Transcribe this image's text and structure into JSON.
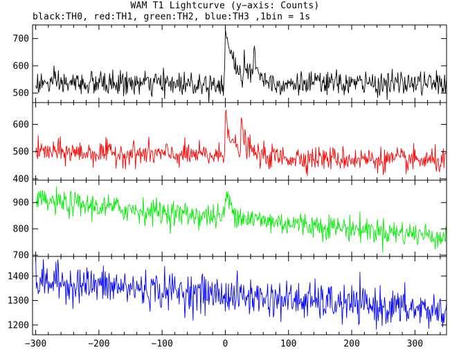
{
  "title": "WAM T1 Lightcurve (y−axis: Counts)",
  "subtitle": "black:TH0, red:TH1, green:TH2, blue:TH3 ,1bin = 1s",
  "chart_data": {
    "type": "line",
    "xlim": [
      -305,
      350
    ],
    "x_ticks": [
      -300,
      -200,
      -100,
      0,
      100,
      200,
      300
    ],
    "x_tick_labels": [
      "−300",
      "−200",
      "−100",
      "0",
      "100",
      "200",
      "300"
    ],
    "grid": false,
    "panels": [
      {
        "series": "TH0",
        "color": "#000000",
        "ylim": [
          465,
          750
        ],
        "y_ticks": [
          500,
          600,
          700
        ],
        "baseline": 535,
        "noise": 22,
        "features": [
          {
            "x": 0,
            "peak": 735,
            "decay": 14
          },
          {
            "x": 30,
            "peak": 610,
            "decay": 6
          },
          {
            "x": 45,
            "peak": 650,
            "decay": 8
          }
        ]
      },
      {
        "series": "TH1",
        "color": "#ff0000",
        "ylim": [
          395,
          680
        ],
        "y_ticks": [
          400,
          500,
          600
        ],
        "baseline_start": 500,
        "baseline_end": 465,
        "noise": 22,
        "features": [
          {
            "x": 0,
            "peak": 655,
            "decay": 10
          },
          {
            "x": 25,
            "peak": 575,
            "decay": 10
          }
        ]
      },
      {
        "series": "TH2",
        "color": "#00ee00",
        "ylim": [
          695,
          985
        ],
        "y_ticks": [
          700,
          800,
          900
        ],
        "baseline_start": 905,
        "baseline_end": 770,
        "noise": 24,
        "features": [
          {
            "x": 0,
            "peak": 935,
            "decay": 12
          }
        ]
      },
      {
        "series": "TH3",
        "color": "#0000ff",
        "ylim": [
          1160,
          1480
        ],
        "y_ticks": [
          1200,
          1300,
          1400
        ],
        "baseline_start": 1380,
        "baseline_end": 1255,
        "noise": 38,
        "features": []
      }
    ]
  }
}
